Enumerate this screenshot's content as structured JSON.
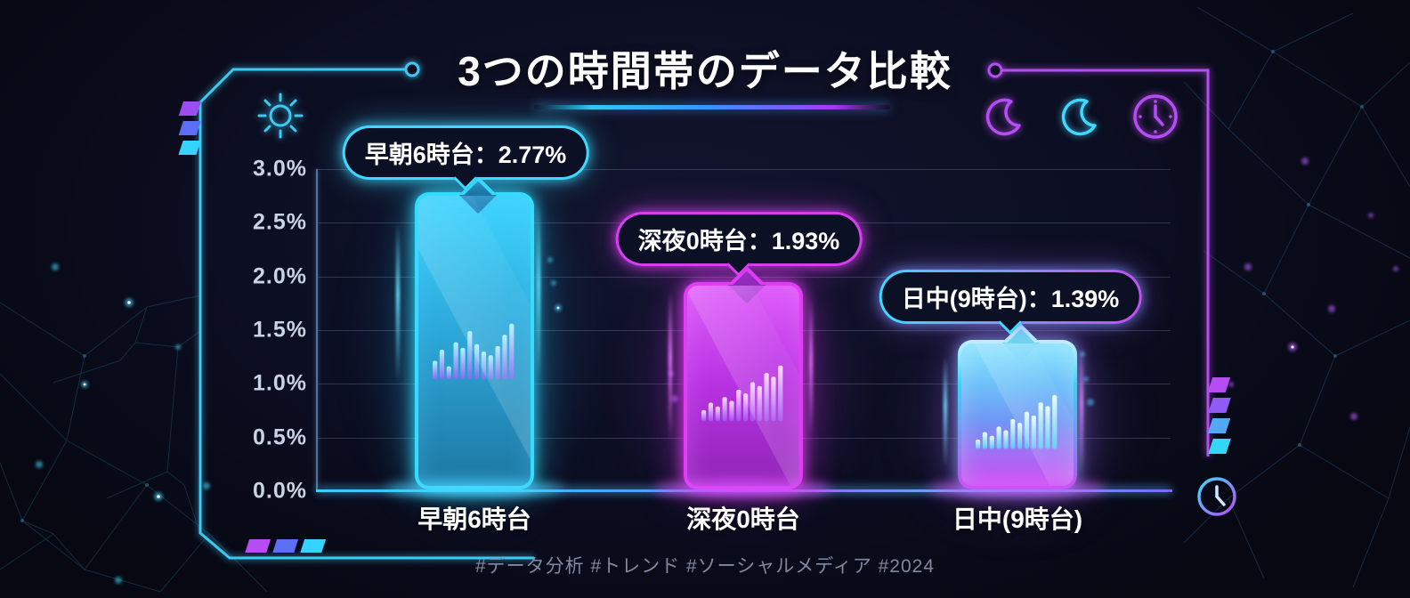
{
  "title": "3つの時間帯のデータ比較",
  "footer": {
    "hashtags": "#データ分析 #トレンド #ソーシャルメディア #2024"
  },
  "chart_data": {
    "type": "bar",
    "title": "3つの時間帯のデータ比較",
    "categories": [
      "早朝6時台",
      "深夜0時台",
      "日中(9時台)"
    ],
    "values": [
      2.77,
      1.93,
      1.39
    ],
    "unit": "%",
    "xlabel": "",
    "ylabel": "",
    "ylim": [
      0,
      3.0
    ],
    "ytick_step": 0.5,
    "ytick_labels": [
      "3.0%",
      "2.5%",
      "2.0%",
      "1.5%",
      "1.0%",
      "0.5%",
      "0.0%"
    ],
    "grid": true,
    "legend": false,
    "callouts": [
      {
        "label": "早朝6時台：2.77%",
        "accent": "#3fd9ff"
      },
      {
        "label": "深夜0時台：1.93%",
        "accent": "#d93df2"
      },
      {
        "label": "日中(9時台)：1.39%",
        "accent": "gradient #3fd9ff→#c44df2"
      }
    ],
    "bar_colors": [
      {
        "name": "cyan-neon",
        "border": "#35dcff"
      },
      {
        "name": "magenta-neon",
        "border": "#e23df5"
      },
      {
        "name": "cyan-to-magenta-gradient",
        "border": "#bdf1ff→#c44df2"
      }
    ],
    "style": "dark neon cyberpunk infographic"
  },
  "decorations": {
    "icons": [
      "sun-icon",
      "moon-icon",
      "moon-icon",
      "clock-icon",
      "clock-icon"
    ],
    "accent_cyan": "#35d3ff",
    "accent_purple": "#b44df2",
    "background": "#0c0e22"
  }
}
